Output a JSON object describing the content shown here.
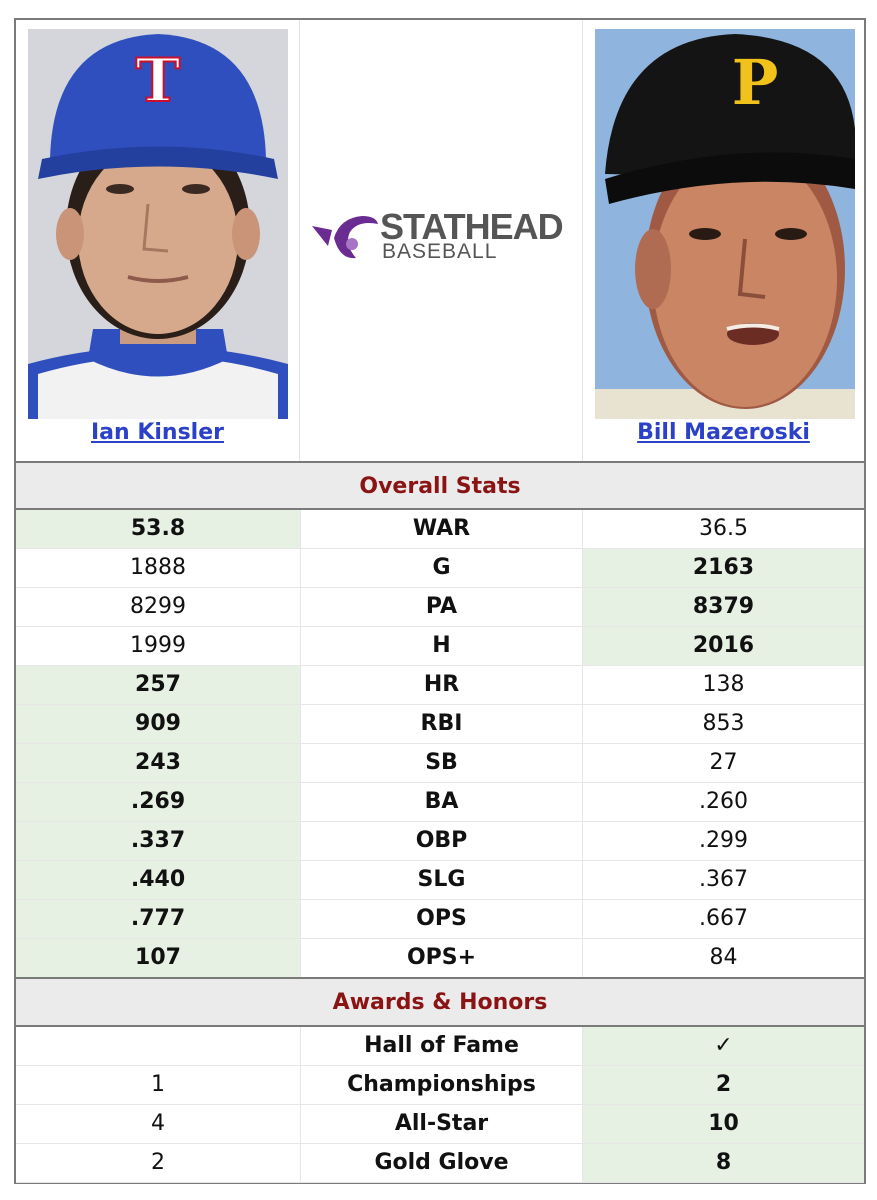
{
  "players": {
    "left": {
      "name": "Ian Kinsler"
    },
    "right": {
      "name": "Bill Mazeroski"
    }
  },
  "logo": {
    "line1": "STATHEAD",
    "line2": "BASEBALL"
  },
  "sections": {
    "overall": "Overall Stats",
    "awards": "Awards & Honors"
  },
  "overall_stats": [
    {
      "label": "WAR",
      "left": "53.8",
      "right": "36.5",
      "winner": "left"
    },
    {
      "label": "G",
      "left": "1888",
      "right": "2163",
      "winner": "right"
    },
    {
      "label": "PA",
      "left": "8299",
      "right": "8379",
      "winner": "right"
    },
    {
      "label": "H",
      "left": "1999",
      "right": "2016",
      "winner": "right"
    },
    {
      "label": "HR",
      "left": "257",
      "right": "138",
      "winner": "left"
    },
    {
      "label": "RBI",
      "left": "909",
      "right": "853",
      "winner": "left"
    },
    {
      "label": "SB",
      "left": "243",
      "right": "27",
      "winner": "left"
    },
    {
      "label": "BA",
      "left": ".269",
      "right": ".260",
      "winner": "left"
    },
    {
      "label": "OBP",
      "left": ".337",
      "right": ".299",
      "winner": "left"
    },
    {
      "label": "SLG",
      "left": ".440",
      "right": ".367",
      "winner": "left"
    },
    {
      "label": "OPS",
      "left": ".777",
      "right": ".667",
      "winner": "left"
    },
    {
      "label": "OPS+",
      "left": "107",
      "right": "84",
      "winner": "left"
    }
  ],
  "awards": [
    {
      "label": "Hall of Fame",
      "left": "",
      "right": "✓",
      "winner": "right"
    },
    {
      "label": "Championships",
      "left": "1",
      "right": "2",
      "winner": "right"
    },
    {
      "label": "All-Star",
      "left": "4",
      "right": "10",
      "winner": "right"
    },
    {
      "label": "Gold Glove",
      "left": "2",
      "right": "8",
      "winner": "right"
    }
  ],
  "colors": {
    "win_bg": "#e6f0e3",
    "section_text": "#8a1414",
    "link": "#2b41c8",
    "logo_purple": "#6a2c91"
  }
}
